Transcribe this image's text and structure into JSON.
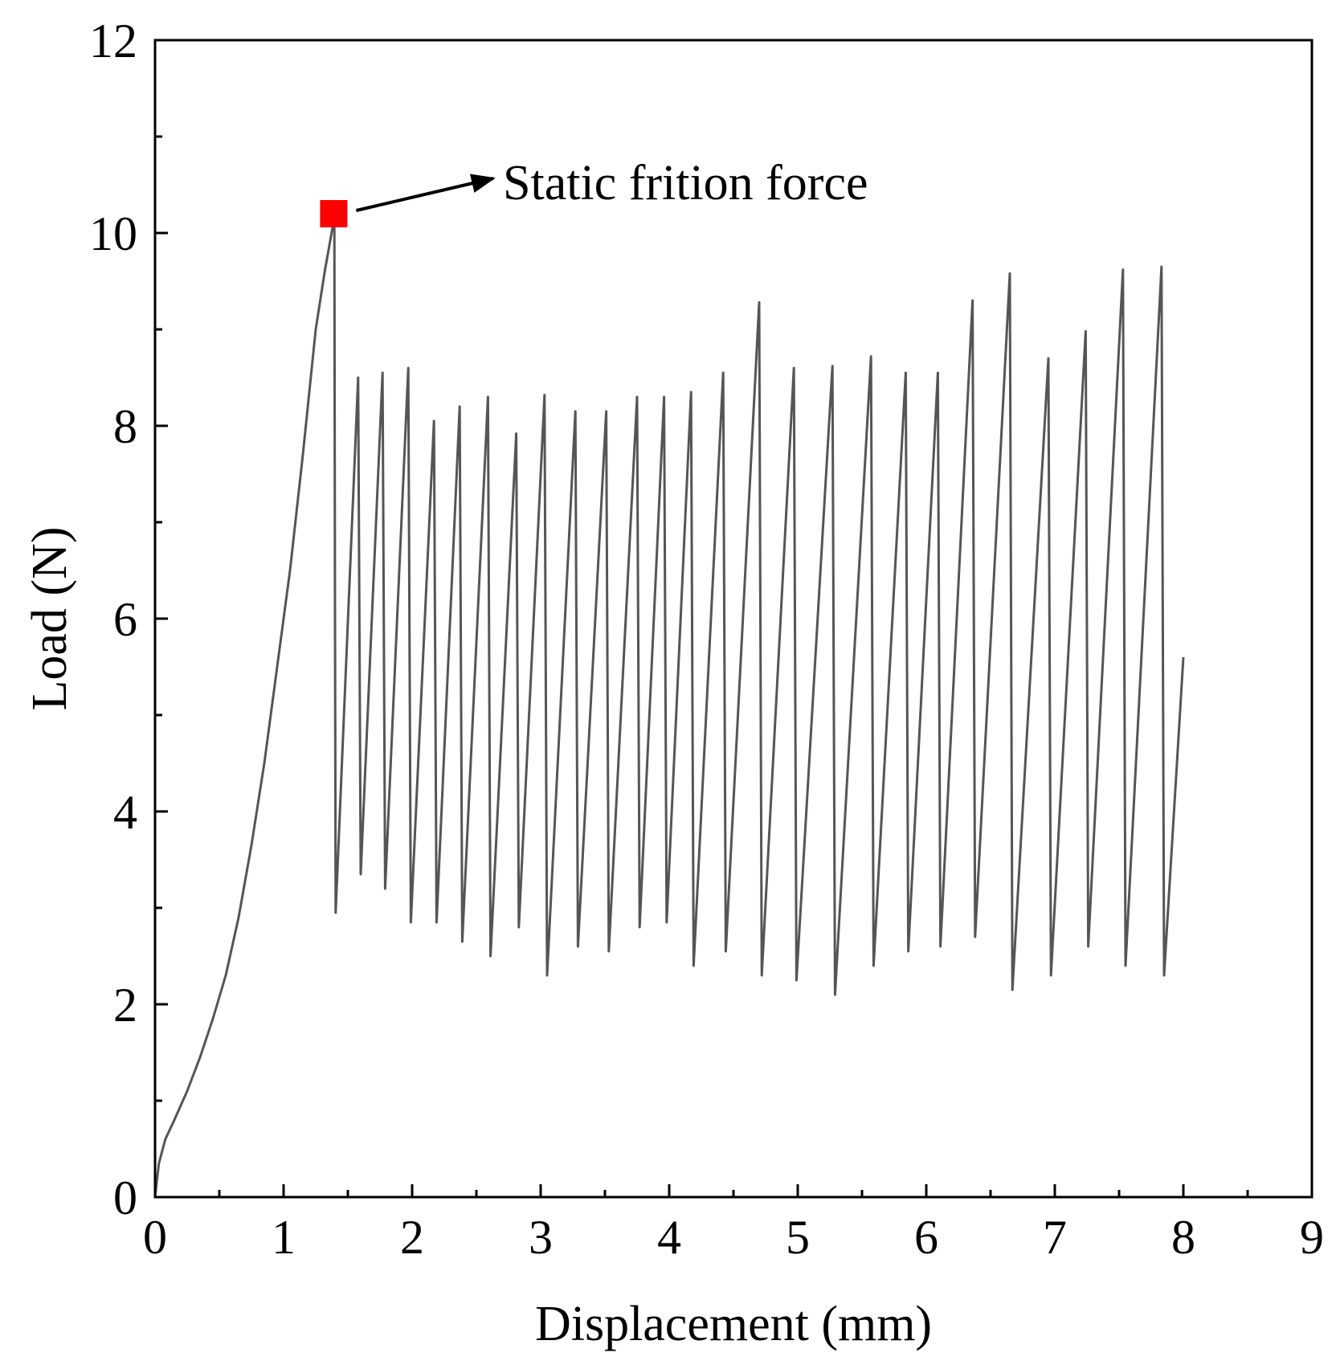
{
  "chart_data": {
    "type": "line",
    "xlabel": "Displacement (mm)",
    "ylabel": "Load (N)",
    "xlim": [
      0,
      9
    ],
    "ylim": [
      0,
      12
    ],
    "xticks": [
      0,
      1,
      2,
      3,
      4,
      5,
      6,
      7,
      8,
      9
    ],
    "yticks": [
      0,
      2,
      4,
      6,
      8,
      10,
      12
    ],
    "x_tick_labels": [
      "0",
      "1",
      "2",
      "3",
      "4",
      "5",
      "6",
      "7",
      "8",
      "9"
    ],
    "y_tick_labels": [
      "0",
      "2",
      "4",
      "6",
      "8",
      "10",
      "12"
    ],
    "grid": false,
    "line_color": "#555555",
    "series": [
      {
        "x": [
          0,
          0.03,
          0.08,
          0.15,
          0.25,
          0.35,
          0.45,
          0.55,
          0.65,
          0.75,
          0.85,
          0.95,
          1.05,
          1.15,
          1.25,
          1.32,
          1.38,
          1.395,
          1.4,
          1.405,
          1.58,
          1.6,
          1.77,
          1.79,
          1.97,
          1.99,
          2.17,
          2.19,
          2.37,
          2.39,
          2.59,
          2.61,
          2.81,
          2.83,
          3.03,
          3.05,
          3.27,
          3.29,
          3.51,
          3.53,
          3.75,
          3.77,
          3.96,
          3.98,
          4.17,
          4.19,
          4.42,
          4.44,
          4.7,
          4.72,
          4.97,
          4.99,
          5.27,
          5.29,
          5.57,
          5.59,
          5.84,
          5.86,
          6.09,
          6.11,
          6.36,
          6.38,
          6.65,
          6.67,
          6.95,
          6.97,
          7.24,
          7.26,
          7.53,
          7.55,
          7.83,
          7.85,
          8.0
        ],
        "y": [
          0,
          0.35,
          0.6,
          0.8,
          1.1,
          1.45,
          1.85,
          2.3,
          2.9,
          3.65,
          4.5,
          5.5,
          6.5,
          7.7,
          9.0,
          9.6,
          10.05,
          10.1,
          6.0,
          2.95,
          8.5,
          3.35,
          8.55,
          3.2,
          8.6,
          2.85,
          8.05,
          2.85,
          8.2,
          2.65,
          8.3,
          2.5,
          7.92,
          2.8,
          8.32,
          2.3,
          8.15,
          2.6,
          8.15,
          2.55,
          8.3,
          2.8,
          8.3,
          2.85,
          8.35,
          2.4,
          8.55,
          2.55,
          9.28,
          2.3,
          8.6,
          2.25,
          8.62,
          2.1,
          8.72,
          2.4,
          8.55,
          2.55,
          8.55,
          2.6,
          9.3,
          2.7,
          9.58,
          2.15,
          8.7,
          2.3,
          8.98,
          2.6,
          9.62,
          2.4,
          9.65,
          2.3,
          5.6
        ]
      }
    ],
    "annotations": [
      {
        "text": "Static frition force",
        "point": [
          1.39,
          10.2
        ],
        "marker": "square",
        "marker_color": "#ff0000"
      }
    ]
  }
}
